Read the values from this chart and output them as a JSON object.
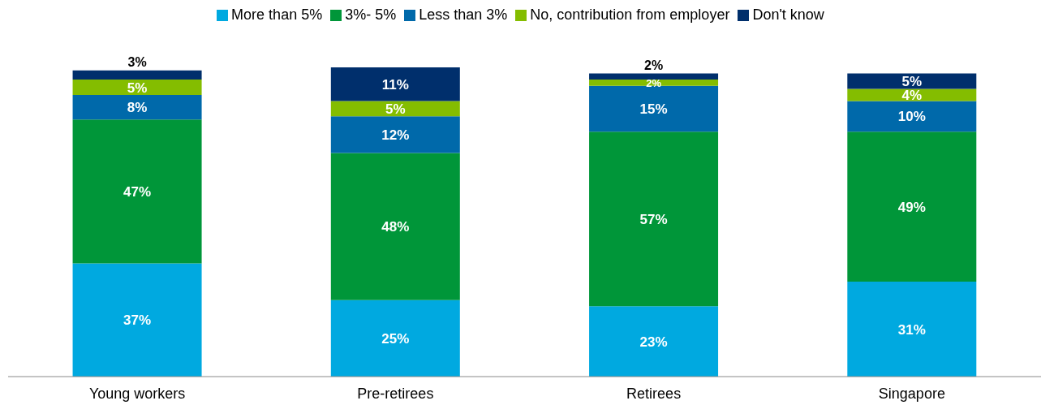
{
  "chart_data": {
    "type": "bar",
    "stacked": true,
    "legend": "top",
    "categories": [
      "Young workers",
      "Pre-retirees",
      "Retirees",
      "Singapore"
    ],
    "series": [
      {
        "name": "More than 5%",
        "color": "#00a9e0",
        "values": [
          37,
          25,
          23,
          31
        ],
        "value_labels": [
          "37%",
          "25%",
          "23%",
          "31%"
        ]
      },
      {
        "name": "3%- 5%",
        "color": "#009639",
        "values": [
          47,
          48,
          57,
          49
        ],
        "value_labels": [
          "47%",
          "48%",
          "57%",
          "49%"
        ]
      },
      {
        "name": "Less than 3%",
        "color": "#0069aa",
        "values": [
          8,
          12,
          15,
          10
        ],
        "value_labels": [
          "8%",
          "12%",
          "15%",
          "10%"
        ]
      },
      {
        "name": "No, contribution from employer",
        "color": "#84bd00",
        "values": [
          5,
          5,
          2,
          4
        ],
        "value_labels": [
          "5%",
          "5%",
          "2%",
          "4%"
        ]
      },
      {
        "name": "Don't know",
        "color": "#002f6c",
        "values": [
          3,
          11,
          2,
          5
        ],
        "value_labels": [
          "3%",
          "11%",
          "2%",
          "5%"
        ]
      }
    ]
  }
}
